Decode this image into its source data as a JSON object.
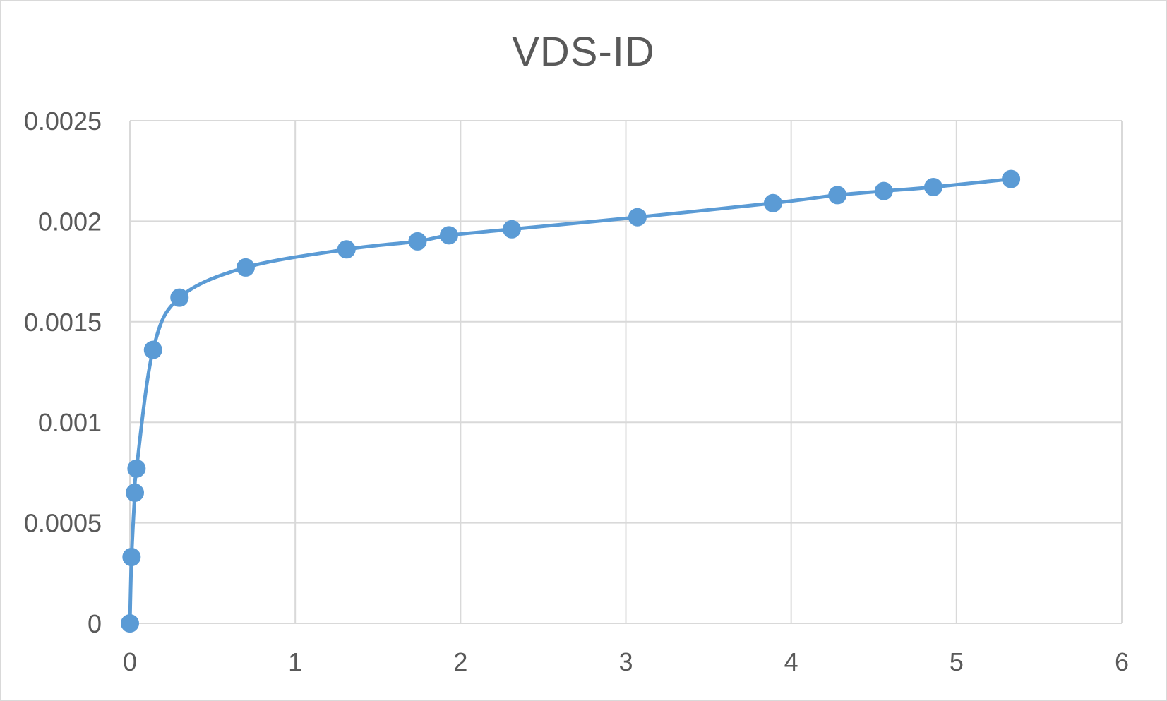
{
  "chart_data": {
    "type": "scatter",
    "title": "VDS-ID",
    "xlabel": "",
    "ylabel": "",
    "xlim": [
      0,
      6
    ],
    "ylim": [
      0,
      0.0025
    ],
    "x_ticks": [
      0,
      1,
      2,
      3,
      4,
      5,
      6
    ],
    "y_ticks": [
      0,
      0.0005,
      0.001,
      0.0015,
      0.002,
      0.0025
    ],
    "x_tick_labels": [
      "0",
      "1",
      "2",
      "3",
      "4",
      "5",
      "6"
    ],
    "y_tick_labels": [
      "0",
      "0.0005",
      "0.001",
      "0.0015",
      "0.002",
      "0.0025"
    ],
    "grid": true,
    "legend": "none",
    "series_color": "#5b9bd5",
    "grid_color": "#d9d9d9",
    "text_color": "#595959",
    "series": [
      {
        "line": "smooth",
        "marker": "circle",
        "x": [
          0,
          0.01,
          0.03,
          0.04,
          0.14,
          0.3,
          0.7,
          1.31,
          1.74,
          1.93,
          2.31,
          3.07,
          3.89,
          4.28,
          4.56,
          4.86,
          5.33
        ],
        "y": [
          0,
          0.00033,
          0.00065,
          0.00077,
          0.00136,
          0.00162,
          0.00177,
          0.00186,
          0.0019,
          0.00193,
          0.00196,
          0.00202,
          0.00209,
          0.00213,
          0.00215,
          0.00217,
          0.00221
        ]
      }
    ]
  }
}
